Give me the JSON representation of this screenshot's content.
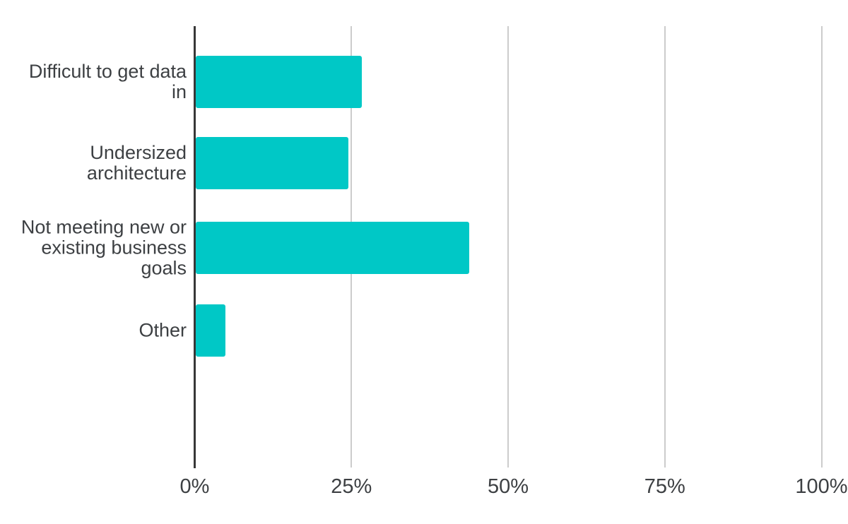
{
  "chart_data": {
    "type": "bar",
    "orientation": "horizontal",
    "title": "",
    "xlabel": "",
    "ylabel": "",
    "categories": [
      "Difficult to get data in",
      "Undersized architecture",
      "Not meeting new or existing business goals",
      "Other"
    ],
    "category_label_lines": [
      [
        "Difficult to get data",
        "in"
      ],
      [
        "Undersized",
        "architecture"
      ],
      [
        "Not meeting new or",
        "existing business",
        "goals"
      ],
      [
        "Other"
      ]
    ],
    "values": [
      26.6,
      24.4,
      43.7,
      4.8
    ],
    "unit": "%",
    "xlim": [
      0,
      100
    ],
    "x_ticks": [
      {
        "value": 0,
        "label": "0%"
      },
      {
        "value": 25,
        "label": "25%"
      },
      {
        "value": 50,
        "label": "50%"
      },
      {
        "value": 75,
        "label": "75%"
      },
      {
        "value": 100,
        "label": "100%"
      }
    ],
    "grid": "vertical-only",
    "legend": "none",
    "colors": {
      "bar": "#00C8C6",
      "axis": "#383838",
      "gridline": "#cccccc",
      "text": "#3d4043",
      "background": "#ffffff"
    }
  }
}
